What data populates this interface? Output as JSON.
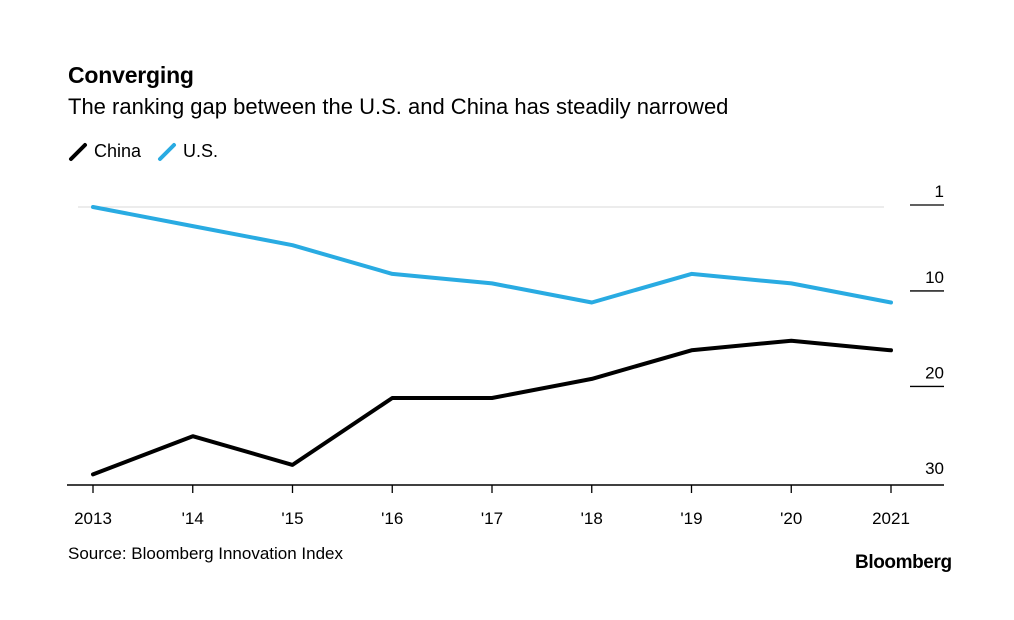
{
  "header": {
    "title": "Converging",
    "subtitle": "The ranking gap between the U.S. and China has steadily narrowed"
  },
  "legend": {
    "items": [
      {
        "label": "China",
        "color": "#000000"
      },
      {
        "label": "U.S.",
        "color": "#29abe2"
      }
    ]
  },
  "footer": {
    "source": "Source: Bloomberg Innovation Index",
    "brand": "Bloomberg"
  },
  "chart_data": {
    "type": "line",
    "title": "Converging",
    "subtitle": "The ranking gap between the U.S. and China has steadily narrowed",
    "xlabel": "",
    "ylabel": "",
    "x": [
      "2013",
      "'14",
      "'15",
      "'16",
      "'17",
      "'18",
      "'19",
      "'20",
      "2021"
    ],
    "y_axis": {
      "ticks": [
        "1",
        "10",
        "20",
        "30"
      ],
      "tick_values": [
        1,
        10,
        20,
        30
      ],
      "inverted": true,
      "position": "right",
      "ylim": [
        1,
        30
      ]
    },
    "grid": false,
    "legend_position": "top-left",
    "series": [
      {
        "name": "China",
        "color": "#000000",
        "values": [
          29,
          25,
          28,
          21,
          21,
          19,
          16,
          15,
          16
        ]
      },
      {
        "name": "U.S.",
        "color": "#29abe2",
        "values": [
          1,
          3,
          5,
          8,
          9,
          11,
          8,
          9,
          11
        ]
      }
    ]
  }
}
